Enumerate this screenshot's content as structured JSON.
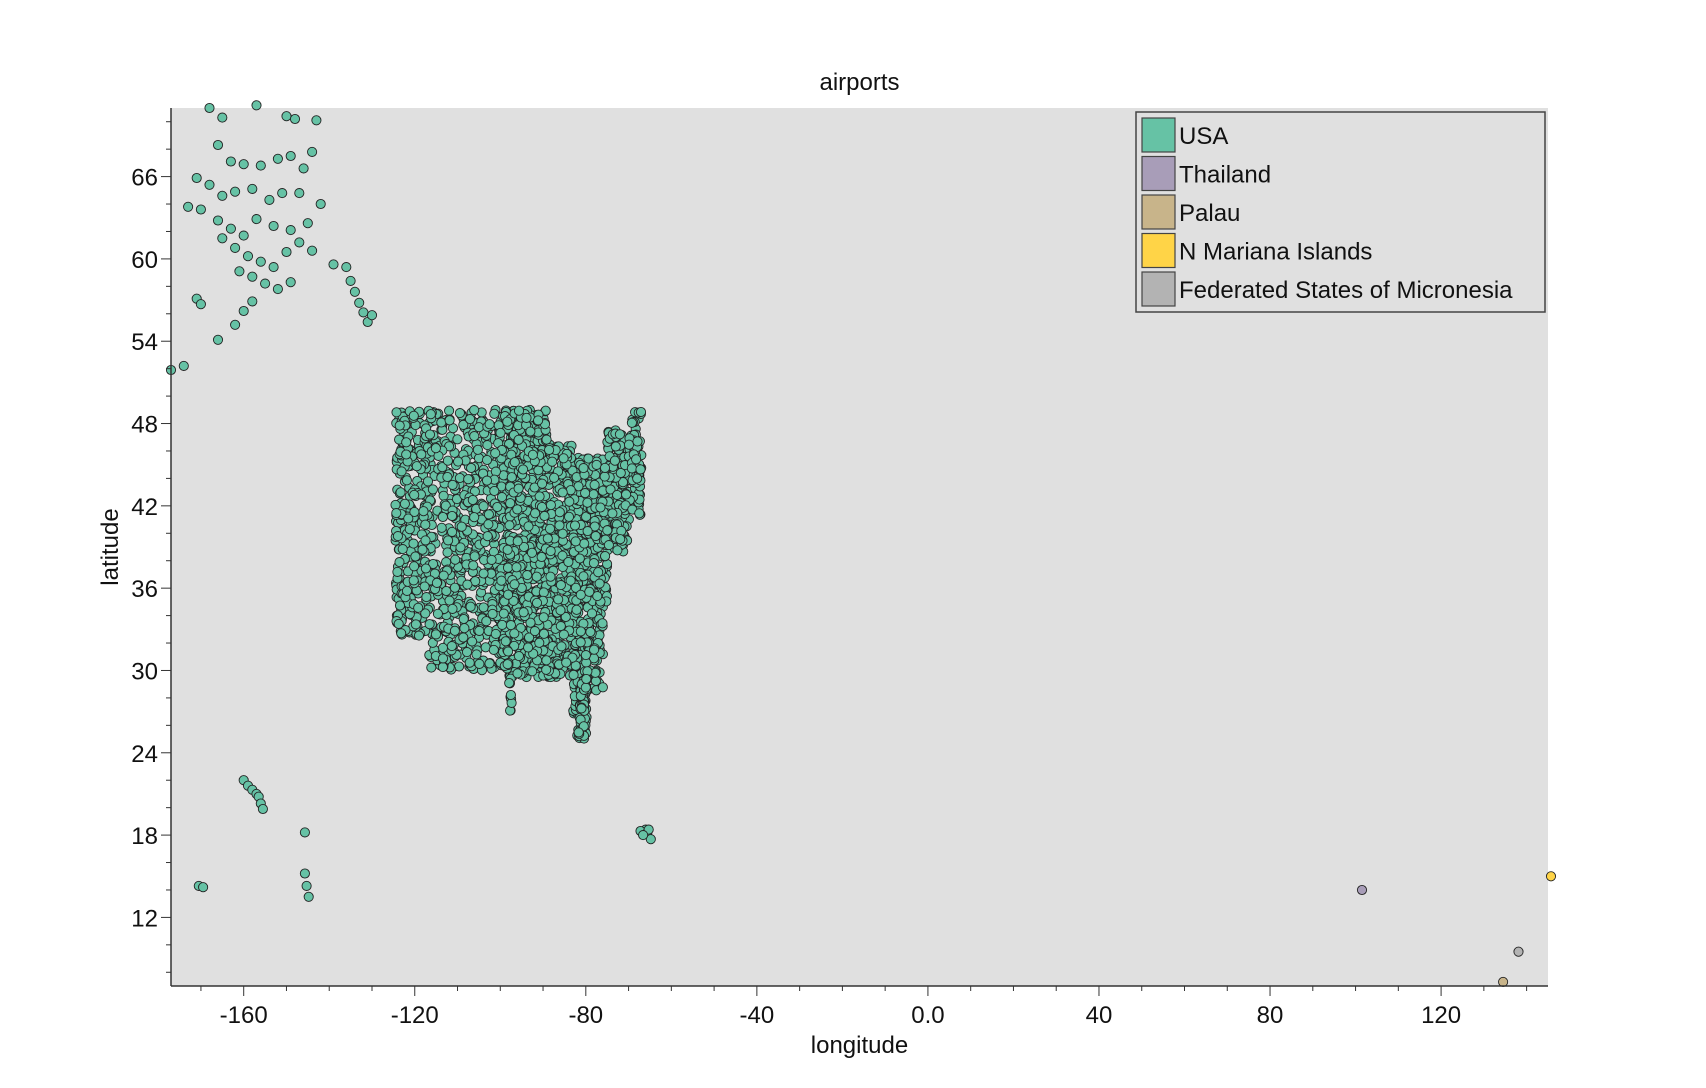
{
  "chart_data": {
    "type": "scatter",
    "title": "airports",
    "xlabel": "longitude",
    "ylabel": "latitude",
    "xlim": [
      -177,
      145
    ],
    "ylim": [
      7,
      71
    ],
    "xticks": [
      "-160",
      "-120",
      "-80",
      "-40",
      "0.0",
      "40",
      "80",
      "120"
    ],
    "xtick_values": [
      -160,
      -120,
      -80,
      -40,
      0,
      40,
      80,
      120
    ],
    "yticks": [
      "12",
      "18",
      "24",
      "30",
      "36",
      "42",
      "48",
      "54",
      "60",
      "66"
    ],
    "ytick_values": [
      12,
      18,
      24,
      30,
      36,
      42,
      48,
      54,
      60,
      66
    ],
    "background": "#e0e0e0",
    "legend_position": "top-right",
    "legend": [
      {
        "name": "USA",
        "color": "#66c2a5"
      },
      {
        "name": "Thailand",
        "color": "#a89db8"
      },
      {
        "name": "Palau",
        "color": "#c8b48a"
      },
      {
        "name": "N Mariana Islands",
        "color": "#ffd447"
      },
      {
        "name": "Federated States of Micronesia",
        "color": "#b3b3b3"
      }
    ],
    "series": [
      {
        "name": "USA",
        "color": "#66c2a5",
        "points": [
          [
            -177,
            51.9
          ],
          [
            -174,
            52.2
          ],
          [
            -168,
            71
          ],
          [
            -165,
            70.3
          ],
          [
            -157,
            71.2
          ],
          [
            -150,
            70.4
          ],
          [
            -148,
            70.2
          ],
          [
            -143,
            70.1
          ],
          [
            -166,
            68.3
          ],
          [
            -163,
            67.1
          ],
          [
            -160,
            66.9
          ],
          [
            -156,
            66.8
          ],
          [
            -152,
            67.3
          ],
          [
            -149,
            67.5
          ],
          [
            -146,
            66.6
          ],
          [
            -144,
            67.8
          ],
          [
            -171,
            65.9
          ],
          [
            -168,
            65.4
          ],
          [
            -165,
            64.6
          ],
          [
            -162,
            64.9
          ],
          [
            -158,
            65.1
          ],
          [
            -154,
            64.3
          ],
          [
            -151,
            64.8
          ],
          [
            -147,
            64.8
          ],
          [
            -142,
            64.0
          ],
          [
            -173,
            63.8
          ],
          [
            -170,
            63.6
          ],
          [
            -166,
            62.8
          ],
          [
            -163,
            62.2
          ],
          [
            -160,
            61.7
          ],
          [
            -157,
            62.9
          ],
          [
            -153,
            62.4
          ],
          [
            -149,
            62.1
          ],
          [
            -145,
            62.6
          ],
          [
            -165,
            61.5
          ],
          [
            -162,
            60.8
          ],
          [
            -159,
            60.2
          ],
          [
            -156,
            59.8
          ],
          [
            -153,
            59.4
          ],
          [
            -150,
            60.5
          ],
          [
            -147,
            61.2
          ],
          [
            -144,
            60.6
          ],
          [
            -139,
            59.6
          ],
          [
            -161,
            59.1
          ],
          [
            -158,
            58.7
          ],
          [
            -155,
            58.2
          ],
          [
            -152,
            57.8
          ],
          [
            -149,
            58.3
          ],
          [
            -136,
            59.4
          ],
          [
            -135,
            58.4
          ],
          [
            -134,
            57.6
          ],
          [
            -133,
            56.8
          ],
          [
            -132,
            56.1
          ],
          [
            -131,
            55.4
          ],
          [
            -130,
            55.9
          ],
          [
            -171,
            57.1
          ],
          [
            -170,
            56.7
          ],
          [
            -162,
            55.2
          ],
          [
            -160,
            56.2
          ],
          [
            -158,
            56.9
          ],
          [
            -166,
            54.1
          ],
          [
            -160,
            22.0
          ],
          [
            -159,
            21.6
          ],
          [
            -158,
            21.3
          ],
          [
            -157,
            21.0
          ],
          [
            -156.5,
            20.8
          ],
          [
            -156,
            20.3
          ],
          [
            -155.5,
            19.9
          ],
          [
            -145.7,
            18.2
          ],
          [
            -145.7,
            15.2
          ],
          [
            -145.3,
            14.3
          ],
          [
            -144.8,
            13.5
          ],
          [
            -170.5,
            14.3
          ],
          [
            -169.5,
            14.2
          ],
          [
            -66.0,
            18.4
          ],
          [
            -67.2,
            18.3
          ],
          [
            -65.6,
            18.2
          ],
          [
            -64.8,
            17.7
          ],
          [
            -65.3,
            18.4
          ],
          [
            -66.6,
            18.0
          ]
        ]
      },
      {
        "name": "Thailand",
        "color": "#a89db8",
        "points": [
          [
            101.5,
            14.0
          ]
        ]
      },
      {
        "name": "Palau",
        "color": "#c8b48a",
        "points": [
          [
            134.5,
            7.3
          ]
        ]
      },
      {
        "name": "N Mariana Islands",
        "color": "#ffd447",
        "points": [
          [
            145.7,
            15.0
          ]
        ]
      },
      {
        "name": "Federated States of Micronesia",
        "color": "#b3b3b3",
        "points": [
          [
            138.1,
            9.5
          ]
        ]
      }
    ]
  }
}
